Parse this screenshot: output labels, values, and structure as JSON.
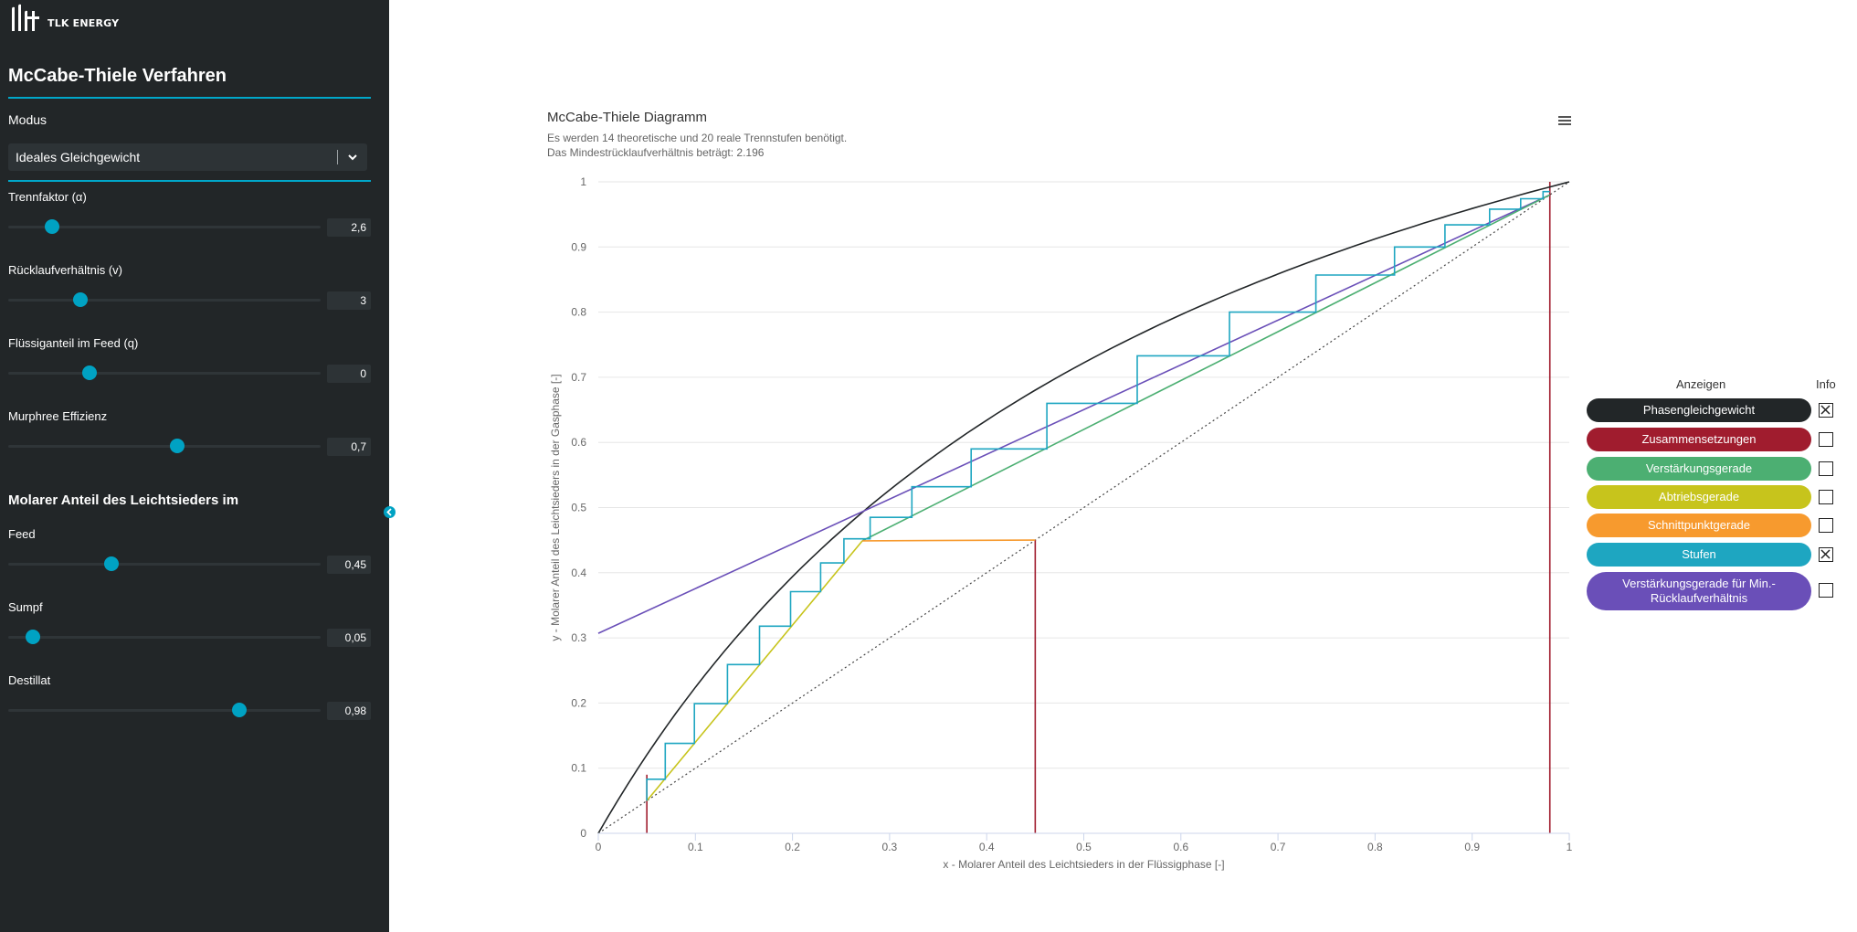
{
  "brand": {
    "logo_text": "TLK ENERGY"
  },
  "sidebar": {
    "title": "McCabe-Thiele Verfahren",
    "mode_label": "Modus",
    "mode_value": "Ideales Gleichgewicht",
    "params": [
      {
        "label": "Trennfaktor (α)",
        "value": "2,6",
        "position": 0.14
      },
      {
        "label": "Rücklaufverhältnis (v)",
        "value": "3",
        "position": 0.23
      },
      {
        "label": "Flüssiganteil im Feed (q)",
        "value": "0",
        "position": 0.26
      },
      {
        "label": "Murphree Effizienz",
        "value": "0,7",
        "position": 0.54
      }
    ],
    "section_title": "Molarer Anteil des Leichtsieders im",
    "fractions": [
      {
        "label": "Feed",
        "value": "0,45",
        "position": 0.33
      },
      {
        "label": "Sumpf",
        "value": "0,05",
        "position": 0.08
      },
      {
        "label": "Destillat",
        "value": "0,98",
        "position": 0.74
      }
    ]
  },
  "chart": {
    "title": "McCabe-Thiele Diagramm",
    "subtitle_line1": "Es werden 14 theoretische und 20 reale Trennstufen benötigt.",
    "subtitle_line2": "Das Mindestrücklaufverhältnis beträgt: 2.196",
    "xlabel": "x - Molarer Anteil des Leichtsieders in der Flüssigphase [-]",
    "ylabel": "y - Molarer Anteil des Leichtsieders in der Gasphase [-]",
    "x_ticks": [
      "0",
      "0.1",
      "0.2",
      "0.3",
      "0.4",
      "0.5",
      "0.6",
      "0.7",
      "0.8",
      "0.9",
      "1"
    ],
    "y_ticks": [
      "0",
      "0.1",
      "0.2",
      "0.3",
      "0.4",
      "0.5",
      "0.6",
      "0.7",
      "0.8",
      "0.9",
      "1"
    ]
  },
  "chart_data": {
    "type": "line",
    "title": "McCabe-Thiele Diagramm",
    "xlabel": "x - Molarer Anteil des Leichtsieders in der Flüssigphase [-]",
    "ylabel": "y - Molarer Anteil des Leichtsieders in der Gasphase [-]",
    "xlim": [
      0,
      1
    ],
    "ylim": [
      0,
      1
    ],
    "grid": true,
    "series": [
      {
        "name": "Phasengleichgewicht",
        "color": "#222628",
        "alpha": 2.6,
        "x": [
          0,
          0.05,
          0.1,
          0.2,
          0.3,
          0.4,
          0.5,
          0.6,
          0.7,
          0.8,
          0.9,
          1
        ],
        "y": [
          0,
          0.12,
          0.224,
          0.394,
          0.527,
          0.634,
          0.722,
          0.796,
          0.858,
          0.912,
          0.959,
          1
        ]
      },
      {
        "name": "Diagonale",
        "color": "#444444",
        "dashed": true,
        "x": [
          0,
          1
        ],
        "y": [
          0,
          1
        ]
      },
      {
        "name": "Zusammensetzungen",
        "color": "#a01c2e",
        "vertical_lines_at": [
          0.05,
          0.45,
          0.98
        ]
      },
      {
        "name": "Verstärkungsgerade",
        "color": "#4caf72",
        "x": [
          0.272,
          0.98
        ],
        "y": [
          0.449,
          0.98
        ]
      },
      {
        "name": "Abtriebsgerade",
        "color": "#c7c41c",
        "x": [
          0.05,
          0.272
        ],
        "y": [
          0.05,
          0.449
        ]
      },
      {
        "name": "Schnittpunktgerade",
        "color": "#f79a2e",
        "x": [
          0.45,
          0.272
        ],
        "y": [
          0.45,
          0.449
        ]
      },
      {
        "name": "Verstärkungsgerade für Min.-Rücklaufverhältnis",
        "color": "#6a4fb8",
        "x": [
          0,
          0.98
        ],
        "y": [
          0.307,
          0.98
        ]
      },
      {
        "name": "Stufen",
        "color": "#1ea6c1",
        "x": [
          0.05,
          0.05,
          0.069,
          0.069,
          0.099,
          0.099,
          0.133,
          0.133,
          0.166,
          0.166,
          0.198,
          0.198,
          0.229,
          0.229,
          0.253,
          0.253,
          0.28,
          0.28,
          0.323,
          0.323,
          0.384,
          0.384,
          0.462,
          0.462,
          0.555,
          0.555,
          0.65,
          0.65,
          0.739,
          0.739,
          0.82,
          0.82,
          0.872,
          0.872,
          0.918,
          0.918,
          0.95,
          0.95,
          0.973,
          0.973,
          0.98
        ],
        "y": [
          0.05,
          0.083,
          0.083,
          0.138,
          0.138,
          0.199,
          0.199,
          0.259,
          0.259,
          0.318,
          0.318,
          0.371,
          0.371,
          0.415,
          0.415,
          0.452,
          0.452,
          0.485,
          0.485,
          0.532,
          0.532,
          0.59,
          0.59,
          0.66,
          0.66,
          0.733,
          0.733,
          0.8,
          0.8,
          0.857,
          0.857,
          0.9,
          0.9,
          0.934,
          0.934,
          0.958,
          0.958,
          0.974,
          0.974,
          0.985,
          0.985
        ]
      }
    ]
  },
  "legend": {
    "header_show": "Anzeigen",
    "header_info": "Info",
    "items": [
      {
        "label": "Phasengleichgewicht",
        "color": "#222628",
        "checked": true
      },
      {
        "label": "Zusammensetzungen",
        "color": "#a01c2e",
        "checked": false
      },
      {
        "label": "Verstärkungsgerade",
        "color": "#4caf72",
        "checked": false
      },
      {
        "label": "Abtriebsgerade",
        "color": "#c7c41c",
        "checked": false
      },
      {
        "label": "Schnittpunktgerade",
        "color": "#f79a2e",
        "checked": false
      },
      {
        "label": "Stufen",
        "color": "#1ea6c1",
        "checked": true
      },
      {
        "label": "Verstärkungsgerade für Min.-Rücklaufverhältnis",
        "color": "#6a4fb8",
        "checked": false
      }
    ]
  }
}
